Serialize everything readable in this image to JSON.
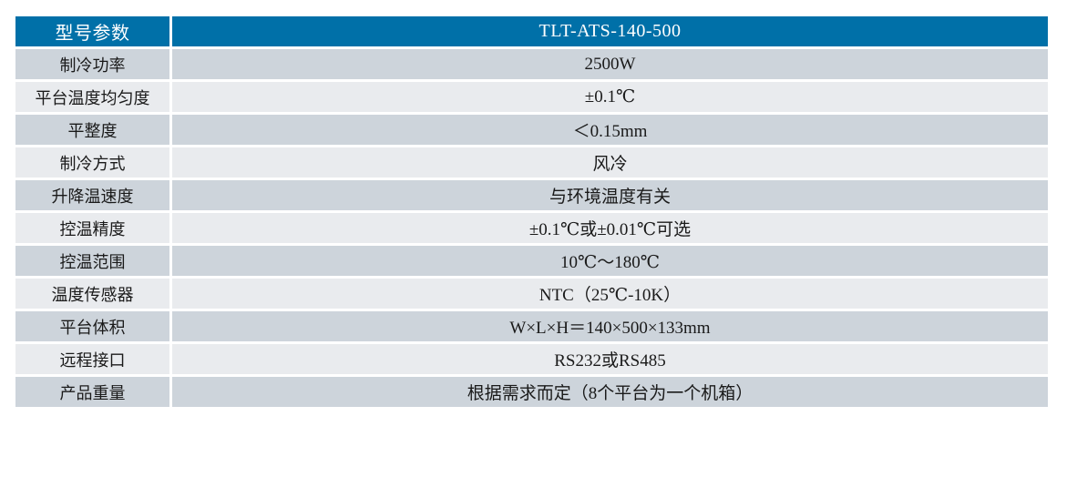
{
  "header": {
    "param_label": "型号参数",
    "model": "TLT-ATS-140-500"
  },
  "rows": [
    {
      "label": "制冷功率",
      "value": "2500W"
    },
    {
      "label": "平台温度均匀度",
      "value": "±0.1℃"
    },
    {
      "label": "平整度",
      "value": "＜0.15mm"
    },
    {
      "label": "制冷方式",
      "value": "风冷"
    },
    {
      "label": "升降温速度",
      "value": "与环境温度有关"
    },
    {
      "label": "控温精度",
      "value": "±0.1℃或±0.01℃可选"
    },
    {
      "label": "控温范围",
      "value": "10℃～180℃"
    },
    {
      "label": "温度传感器",
      "value": "NTC（25℃-10K）"
    },
    {
      "label": "平台体积",
      "value": "W×L×H＝140×500×133mm"
    },
    {
      "label": "远程接口",
      "value": "RS232或RS485"
    },
    {
      "label": "产品重量",
      "value": "根据需求而定（8个平台为一个机箱）"
    }
  ],
  "colors": {
    "header_bg": "#0070a8",
    "header_text": "#ffffff",
    "row_dark_bg": "#cdd4db",
    "row_light_bg": "#e9ebee",
    "cell_text": "#1a1a1a"
  }
}
